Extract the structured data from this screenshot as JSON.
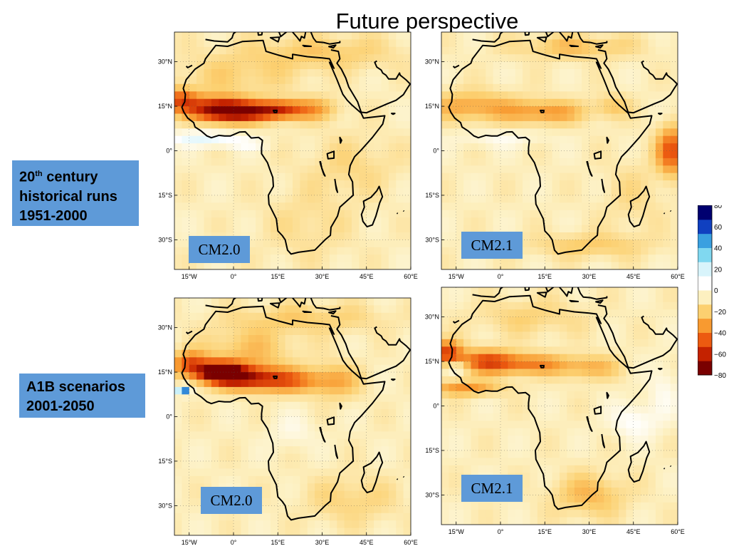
{
  "title": "Future perspective",
  "rows": [
    {
      "line1_pre": "20",
      "line1_sup": "th",
      "line1_post": " century",
      "line2": "historical runs",
      "line3": "1951-2000"
    },
    {
      "line1": "A1B scenarios",
      "line2": "2001-2050"
    }
  ],
  "panels": [
    {
      "model": "CM2.0",
      "period": "1951-2000"
    },
    {
      "model": "CM2.1",
      "period": "1951-2000"
    },
    {
      "model": "CM2.0",
      "period": "2001-2050"
    },
    {
      "model": "CM2.1",
      "period": "2001-2050"
    }
  ],
  "lat_ticks": [
    "30°N",
    "15°N",
    "0°",
    "15°S",
    "30°S"
  ],
  "lon_ticks": [
    "15°W",
    "0°",
    "15°E",
    "30°E",
    "45°E",
    "60°E"
  ],
  "colorbar": {
    "ticks": [
      "80",
      "60",
      "40",
      "20",
      "0",
      "−20",
      "−40",
      "−60",
      "−80"
    ],
    "range": [
      -80,
      80
    ],
    "colors": [
      "#7a0000",
      "#c42200",
      "#ec5a10",
      "#f89a30",
      "#fcd070",
      "#fdf0c0",
      "#ffffff",
      "#d8f4fb",
      "#80d8f0",
      "#3aa0e0",
      "#1040c0",
      "#000070"
    ]
  }
}
